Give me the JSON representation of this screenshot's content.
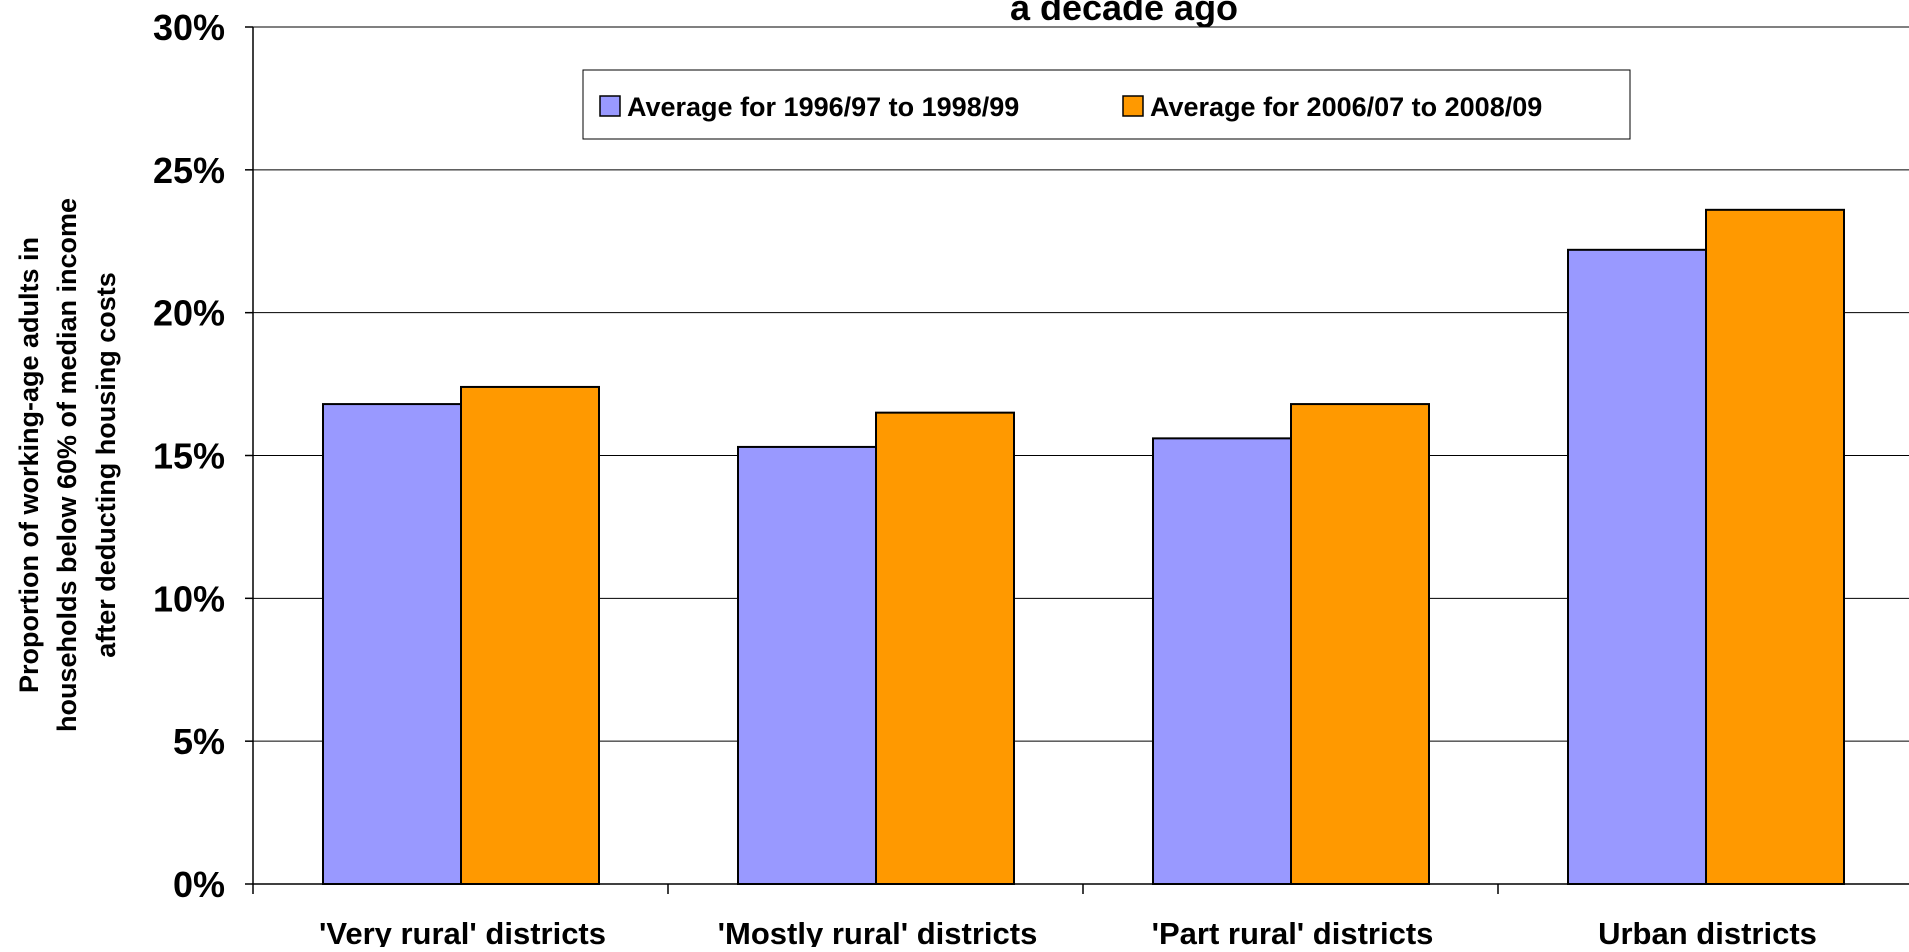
{
  "chart_data": {
    "type": "bar",
    "title": "a decade ago",
    "ylabel_lines": [
      "Proportion of working-age adults in",
      "households below 60% of median income",
      "after deducting housing costs"
    ],
    "xlabel": "",
    "ylim": [
      0,
      30
    ],
    "yticks": [
      "0%",
      "5%",
      "10%",
      "15%",
      "20%",
      "25%",
      "30%"
    ],
    "categories": [
      "'Very rural' districts",
      "'Mostly rural' districts",
      "'Part rural' districts",
      "Urban districts"
    ],
    "series": [
      {
        "name": "Average for 1996/97 to 1998/99",
        "color": "#9999ff",
        "values": [
          16.8,
          15.3,
          15.6,
          22.2
        ]
      },
      {
        "name": "Average for 2006/07 to 2008/09",
        "color": "#ff9900",
        "values": [
          17.4,
          16.5,
          16.8,
          23.6
        ]
      }
    ],
    "grid": true,
    "legend_position": "top"
  }
}
